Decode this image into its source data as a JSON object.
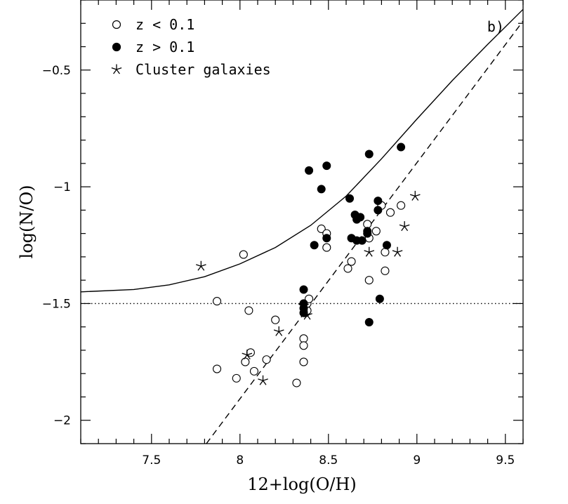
{
  "chart_data": {
    "type": "scatter",
    "panel_label": "b)",
    "xlabel": "12+log(O/H)",
    "ylabel": "log(N/O)",
    "xlim": [
      7.1,
      9.6
    ],
    "ylim": [
      -2.1,
      -0.2
    ],
    "xticks_major": [
      7.5,
      8,
      8.5,
      9,
      9.5
    ],
    "xtick_labels": [
      "7.5",
      "8",
      "8.5",
      "9",
      "9.5"
    ],
    "xticks_minor_step": 0.1,
    "yticks_major": [
      -0.5,
      -1,
      -1.5,
      -2
    ],
    "ytick_labels": [
      "-0.5",
      "-1",
      "-1.5",
      "-2"
    ],
    "yticks_minor_step": 0.1,
    "legend": [
      {
        "marker": "open-circle",
        "label": "z < 0.1"
      },
      {
        "marker": "filled-circle",
        "label": "z > 0.1"
      },
      {
        "marker": "star",
        "label": "Cluster galaxies"
      }
    ],
    "series": [
      {
        "name": "z < 0.1",
        "marker": "open-circle",
        "points": [
          [
            8.02,
            -1.29
          ],
          [
            7.87,
            -1.49
          ],
          [
            8.05,
            -1.53
          ],
          [
            7.87,
            -1.78
          ],
          [
            7.98,
            -1.82
          ],
          [
            8.03,
            -1.75
          ],
          [
            8.06,
            -1.71
          ],
          [
            8.08,
            -1.79
          ],
          [
            8.15,
            -1.74
          ],
          [
            8.2,
            -1.57
          ],
          [
            8.32,
            -1.84
          ],
          [
            8.36,
            -1.65
          ],
          [
            8.36,
            -1.68
          ],
          [
            8.36,
            -1.75
          ],
          [
            8.37,
            -1.52
          ],
          [
            8.37,
            -1.54
          ],
          [
            8.38,
            -1.53
          ],
          [
            8.38,
            -1.5
          ],
          [
            8.39,
            -1.48
          ],
          [
            8.46,
            -1.18
          ],
          [
            8.49,
            -1.2
          ],
          [
            8.49,
            -1.26
          ],
          [
            8.61,
            -1.35
          ],
          [
            8.63,
            -1.32
          ],
          [
            8.72,
            -1.16
          ],
          [
            8.73,
            -1.22
          ],
          [
            8.73,
            -1.4
          ],
          [
            8.77,
            -1.19
          ],
          [
            8.8,
            -1.08
          ],
          [
            8.82,
            -1.28
          ],
          [
            8.82,
            -1.36
          ],
          [
            8.85,
            -1.11
          ],
          [
            8.91,
            -1.08
          ]
        ]
      },
      {
        "name": "z > 0.1",
        "marker": "filled-circle",
        "points": [
          [
            8.39,
            -0.93
          ],
          [
            8.49,
            -0.91
          ],
          [
            8.73,
            -0.86
          ],
          [
            8.91,
            -0.83
          ],
          [
            8.46,
            -1.01
          ],
          [
            8.62,
            -1.05
          ],
          [
            8.78,
            -1.06
          ],
          [
            8.78,
            -1.1
          ],
          [
            8.65,
            -1.12
          ],
          [
            8.66,
            -1.14
          ],
          [
            8.68,
            -1.13
          ],
          [
            8.72,
            -1.2
          ],
          [
            8.72,
            -1.19
          ],
          [
            8.49,
            -1.22
          ],
          [
            8.63,
            -1.22
          ],
          [
            8.66,
            -1.23
          ],
          [
            8.69,
            -1.23
          ],
          [
            8.42,
            -1.25
          ],
          [
            8.83,
            -1.25
          ],
          [
            8.36,
            -1.44
          ],
          [
            8.36,
            -1.5
          ],
          [
            8.36,
            -1.52
          ],
          [
            8.36,
            -1.54
          ],
          [
            8.79,
            -1.48
          ],
          [
            8.73,
            -1.58
          ]
        ]
      },
      {
        "name": "Cluster galaxies",
        "marker": "star",
        "points": [
          [
            7.78,
            -1.34
          ],
          [
            8.99,
            -1.04
          ],
          [
            8.93,
            -1.17
          ],
          [
            8.73,
            -1.28
          ],
          [
            8.89,
            -1.28
          ],
          [
            8.36,
            -1.51
          ],
          [
            8.38,
            -1.55
          ],
          [
            8.22,
            -1.62
          ],
          [
            8.04,
            -1.72
          ],
          [
            8.13,
            -1.83
          ]
        ]
      }
    ],
    "curves": [
      {
        "style": "solid",
        "points": [
          [
            7.1,
            -1.45
          ],
          [
            7.4,
            -1.44
          ],
          [
            7.6,
            -1.42
          ],
          [
            7.8,
            -1.385
          ],
          [
            8.0,
            -1.33
          ],
          [
            8.2,
            -1.26
          ],
          [
            8.4,
            -1.165
          ],
          [
            8.6,
            -1.04
          ],
          [
            8.8,
            -0.88
          ],
          [
            9.0,
            -0.71
          ],
          [
            9.2,
            -0.545
          ],
          [
            9.4,
            -0.39
          ],
          [
            9.6,
            -0.24
          ]
        ]
      },
      {
        "style": "dashed",
        "points": [
          [
            7.81,
            -2.1
          ],
          [
            9.6,
            -0.29
          ]
        ]
      },
      {
        "style": "dotted",
        "points": [
          [
            7.1,
            -1.5
          ],
          [
            9.6,
            -1.5
          ]
        ]
      }
    ]
  }
}
